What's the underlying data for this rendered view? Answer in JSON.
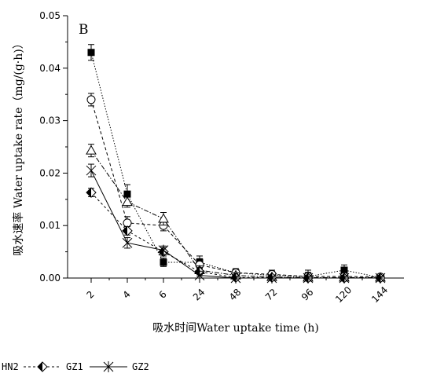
{
  "chart_data": {
    "type": "line",
    "panel_label": "B",
    "xlabel": "吸水时间Water uptake time (h)",
    "ylabel": "吸水速率 Water uptake rate（mg/(g·h)）",
    "categories": [
      "2",
      "4",
      "6",
      "24",
      "48",
      "72",
      "96",
      "120",
      "144"
    ],
    "ylim": [
      0,
      0.05
    ],
    "yticks": [
      "0.00",
      "0.01",
      "0.02",
      "0.03",
      "0.04",
      "0.05"
    ],
    "grid": false,
    "legend_position": "bottom-left",
    "series": [
      {
        "marker": "filled-square",
        "values": [
          0.043,
          0.016,
          0.003,
          0.003,
          0.001,
          0.0005,
          0.0003,
          0.0015,
          0.0001
        ],
        "errors": [
          0.0015,
          0.0018,
          0.0008,
          0.0012,
          0.0008,
          0.0008,
          0.0012,
          0.001,
          0.0005
        ]
      },
      {
        "marker": "open-circle",
        "values": [
          0.034,
          0.0105,
          0.01,
          0.0025,
          0.001,
          0.0007,
          0.0003,
          0.0003,
          0.0002
        ],
        "errors": [
          0.0012,
          0.0012,
          0.001,
          0.0012,
          0.0008,
          0.0008,
          0.0008,
          0.0008,
          0.0004
        ]
      },
      {
        "marker": "open-triangle",
        "values": [
          0.0243,
          0.0145,
          0.0113,
          0.0015,
          0.0005,
          0.0002,
          0.0001,
          0.0001,
          0.0001
        ],
        "errors": [
          0.0012,
          0.001,
          0.0012,
          0.0008,
          0.0005,
          0.0004,
          0.0004,
          0.0004,
          0.0004
        ]
      },
      {
        "name": "GZ1",
        "marker": "half-diamond",
        "values": [
          0.0163,
          0.009,
          0.005,
          0.0012,
          0.0001,
          0.0001,
          0.0,
          0.0,
          0.0
        ],
        "errors": [
          0.0008,
          0.0008,
          0.0008,
          0.0008,
          0.0003,
          0.0003,
          0.0003,
          0.0003,
          0.0003
        ]
      },
      {
        "name": "GZ2",
        "marker": "asterisk",
        "values": [
          0.0205,
          0.0067,
          0.0053,
          0.0005,
          0.0,
          0.0,
          0.0,
          0.0,
          0.0
        ],
        "errors": [
          0.0012,
          0.001,
          0.0008,
          0.0008,
          0.0003,
          0.0003,
          0.0003,
          0.0003,
          0.0003
        ]
      }
    ],
    "legend_entries": [
      "HN2",
      "GZ1",
      "GZ2"
    ]
  }
}
